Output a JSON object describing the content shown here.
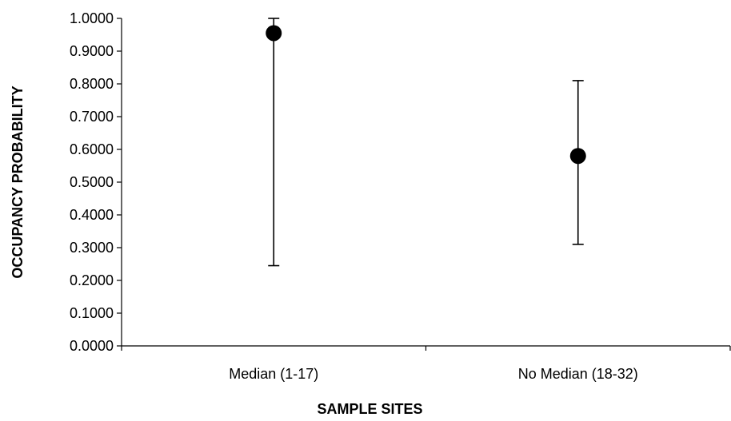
{
  "chart_data": {
    "type": "scatter",
    "title": "",
    "xlabel": "SAMPLE SITES",
    "ylabel": "OCCUPANCY PROBABILITY",
    "ylim": [
      0,
      1
    ],
    "y_ticks": [
      "0.0000",
      "0.1000",
      "0.2000",
      "0.3000",
      "0.4000",
      "0.5000",
      "0.6000",
      "0.7000",
      "0.8000",
      "0.9000",
      "1.0000"
    ],
    "categories": [
      "Median (1-17)",
      "No Median (18-32)"
    ],
    "series": [
      {
        "values": [
          0.955,
          0.58
        ],
        "lower": [
          0.245,
          0.31
        ],
        "upper": [
          1.0,
          0.81
        ]
      }
    ],
    "grid": false,
    "legend": "none",
    "marker_color": "#000000"
  }
}
